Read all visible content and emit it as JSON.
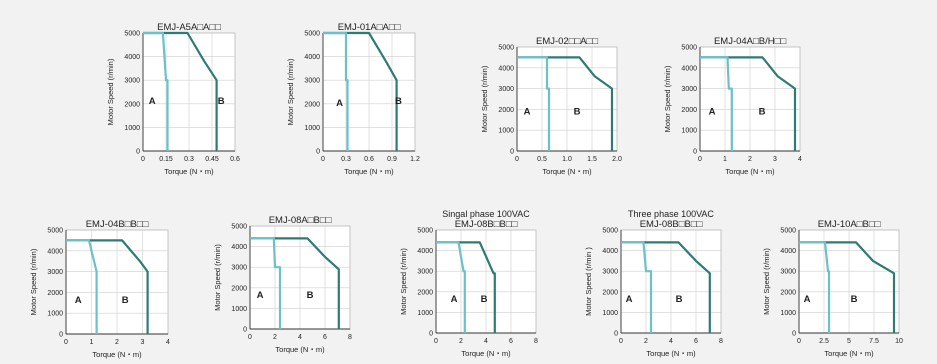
{
  "chart_data": [
    {
      "type": "line",
      "title": "EMJ-A5A□A□□",
      "xlabel": "Torque (N・m)",
      "ylabel": "Motor  Speed (r/min)",
      "xlim": [
        0,
        0.6
      ],
      "ylim": [
        0,
        5000
      ],
      "xticks": [
        0,
        0.15,
        0.3,
        0.45,
        0.6
      ],
      "xtick_labels": [
        "0",
        "0.15",
        "0.3",
        "0.45",
        "0.6"
      ],
      "yticks": [
        0,
        1000,
        2000,
        3000,
        4000,
        5000
      ],
      "series": [
        {
          "name": "A",
          "color": "#6cc0c8",
          "points": [
            [
              0,
              5000
            ],
            [
              0.13,
              5000
            ],
            [
              0.15,
              3000
            ],
            [
              0.16,
              3000
            ],
            [
              0.16,
              0
            ]
          ]
        },
        {
          "name": "B",
          "color": "#2e7b76",
          "points": [
            [
              0,
              5000
            ],
            [
              0.29,
              5000
            ],
            [
              0.4,
              3800
            ],
            [
              0.48,
              3000
            ],
            [
              0.48,
              0
            ]
          ]
        }
      ]
    },
    {
      "type": "line",
      "title": "EMJ-01A□A□□",
      "xlabel": "Torque (N・m)",
      "ylabel": "Motor  Speed (r/min)",
      "xlim": [
        0,
        1.2
      ],
      "ylim": [
        0,
        5000
      ],
      "xticks": [
        0,
        0.3,
        0.6,
        0.9,
        1.2
      ],
      "xtick_labels": [
        "0",
        "0.3",
        "0.6",
        "0.9",
        "1.2"
      ],
      "yticks": [
        0,
        1000,
        2000,
        3000,
        4000,
        5000
      ],
      "series": [
        {
          "name": "A",
          "color": "#6cc0c8",
          "points": [
            [
              0,
              5000
            ],
            [
              0.3,
              5000
            ],
            [
              0.3,
              3000
            ],
            [
              0.32,
              3000
            ],
            [
              0.32,
              0
            ]
          ]
        },
        {
          "name": "B",
          "color": "#2e7b76",
          "points": [
            [
              0,
              5000
            ],
            [
              0.6,
              5000
            ],
            [
              0.82,
              3800
            ],
            [
              0.96,
              3000
            ],
            [
              0.96,
              0
            ]
          ]
        }
      ]
    },
    {
      "type": "line",
      "title": "EMJ-02□□A□□",
      "xlabel": "Torque (N・m)",
      "ylabel": "Motor  Speed (r/min)",
      "xlim": [
        0,
        2.0
      ],
      "ylim": [
        0,
        5000
      ],
      "xticks": [
        0,
        0.5,
        1.0,
        1.5,
        2.0
      ],
      "xtick_labels": [
        "0",
        "0.5",
        "1.0",
        "1.5",
        "2.0"
      ],
      "yticks": [
        0,
        1000,
        2000,
        3000,
        4000,
        5000
      ],
      "series": [
        {
          "name": "A",
          "color": "#6cc0c8",
          "points": [
            [
              0,
              4500
            ],
            [
              0.6,
              4500
            ],
            [
              0.6,
              3000
            ],
            [
              0.64,
              3000
            ],
            [
              0.64,
              0
            ]
          ]
        },
        {
          "name": "B",
          "color": "#2e7b76",
          "points": [
            [
              0,
              4500
            ],
            [
              1.25,
              4500
            ],
            [
              1.55,
              3600
            ],
            [
              1.9,
              3000
            ],
            [
              1.9,
              0
            ]
          ]
        }
      ]
    },
    {
      "type": "line",
      "title": "EMJ-04A□B/H□□",
      "xlabel": "Torque (N・m)",
      "ylabel": "Motor  Speed (r/min)",
      "xlim": [
        0,
        4
      ],
      "ylim": [
        0,
        5000
      ],
      "xticks": [
        0,
        1,
        2,
        3,
        4
      ],
      "xtick_labels": [
        "0",
        "1",
        "2",
        "3",
        "4"
      ],
      "yticks": [
        0,
        1000,
        2000,
        3000,
        4000,
        5000
      ],
      "series": [
        {
          "name": "A",
          "color": "#6cc0c8",
          "points": [
            [
              0,
              4500
            ],
            [
              1.1,
              4500
            ],
            [
              1.15,
              3000
            ],
            [
              1.27,
              3000
            ],
            [
              1.27,
              0
            ]
          ]
        },
        {
          "name": "B",
          "color": "#2e7b76",
          "points": [
            [
              0,
              4500
            ],
            [
              2.5,
              4500
            ],
            [
              3.1,
              3600
            ],
            [
              3.8,
              3000
            ],
            [
              3.8,
              0
            ]
          ]
        }
      ]
    },
    {
      "type": "line",
      "title": "EMJ-04B□B□□",
      "xlabel": "Torque (N・m)",
      "ylabel": "Motor  Speed (r/min)",
      "xlim": [
        0,
        4
      ],
      "ylim": [
        0,
        5000
      ],
      "xticks": [
        0,
        1,
        2,
        3,
        4
      ],
      "xtick_labels": [
        "0",
        "1",
        "2",
        "3",
        "4"
      ],
      "yticks": [
        0,
        1000,
        2000,
        3000,
        4000,
        5000
      ],
      "series": [
        {
          "name": "A",
          "color": "#6cc0c8",
          "points": [
            [
              0,
              4500
            ],
            [
              0.9,
              4500
            ],
            [
              1.2,
              3000
            ],
            [
              1.2,
              0
            ]
          ]
        },
        {
          "name": "B",
          "color": "#2e7b76",
          "points": [
            [
              0,
              4500
            ],
            [
              2.2,
              4500
            ],
            [
              2.9,
              3500
            ],
            [
              3.2,
              3000
            ],
            [
              3.2,
              0
            ]
          ]
        }
      ]
    },
    {
      "type": "line",
      "title": "EMJ-08A□B□□",
      "xlabel": "Torque (N・m)",
      "ylabel": "Motor  Speed (r/min)",
      "xlim": [
        0,
        8
      ],
      "ylim": [
        0,
        5000
      ],
      "xticks": [
        0,
        2,
        4,
        6,
        8
      ],
      "xtick_labels": [
        "0",
        "2",
        "4",
        "6",
        "8"
      ],
      "yticks": [
        0,
        1000,
        2000,
        3000,
        4000,
        5000
      ],
      "series": [
        {
          "name": "A",
          "color": "#6cc0c8",
          "points": [
            [
              0,
              4400
            ],
            [
              1.9,
              4400
            ],
            [
              2.0,
              3000
            ],
            [
              2.4,
              3000
            ],
            [
              2.4,
              0
            ]
          ]
        },
        {
          "name": "B",
          "color": "#2e7b76",
          "points": [
            [
              0,
              4400
            ],
            [
              4.6,
              4400
            ],
            [
              6.0,
              3500
            ],
            [
              7.1,
              2900
            ],
            [
              7.1,
              0
            ]
          ]
        }
      ]
    },
    {
      "type": "line",
      "title": "EMJ-08B□B□□",
      "subtitle": "Singal phase 100VAC",
      "xlabel": "Torque (N・m)",
      "ylabel": "Motor  Speed (r/min)",
      "xlim": [
        0,
        8
      ],
      "ylim": [
        0,
        5000
      ],
      "xticks": [
        0,
        2,
        4,
        6,
        8
      ],
      "xtick_labels": [
        "0",
        "2",
        "4",
        "6",
        "8"
      ],
      "yticks": [
        0,
        1000,
        2000,
        3000,
        4000,
        5000
      ],
      "series": [
        {
          "name": "A",
          "color": "#6cc0c8",
          "points": [
            [
              0,
              4400
            ],
            [
              1.8,
              4400
            ],
            [
              2.2,
              3000
            ],
            [
              2.3,
              3000
            ],
            [
              2.3,
              0
            ]
          ]
        },
        {
          "name": "B",
          "color": "#2e7b76",
          "points": [
            [
              0,
              4400
            ],
            [
              3.5,
              4400
            ],
            [
              4.6,
              2900
            ],
            [
              4.7,
              2900
            ],
            [
              4.7,
              0
            ]
          ]
        }
      ]
    },
    {
      "type": "line",
      "title": "EMJ-08B□B□□",
      "subtitle": "Three phase 100VAC",
      "xlabel": "Torque (N・m)",
      "ylabel": "Motor  Speed (r/min )",
      "xlim": [
        0,
        8
      ],
      "ylim": [
        0,
        5000
      ],
      "xticks": [
        0,
        2,
        4,
        6,
        8
      ],
      "xtick_labels": [
        "0",
        "2",
        "4",
        "6",
        "8"
      ],
      "yticks": [
        0,
        1000,
        2000,
        3000,
        4000,
        5000
      ],
      "series": [
        {
          "name": "A",
          "color": "#6cc0c8",
          "points": [
            [
              0,
              4400
            ],
            [
              1.8,
              4400
            ],
            [
              2.0,
              3000
            ],
            [
              2.4,
              3000
            ],
            [
              2.4,
              0
            ]
          ]
        },
        {
          "name": "B",
          "color": "#2e7b76",
          "points": [
            [
              0,
              4400
            ],
            [
              4.6,
              4400
            ],
            [
              6.0,
              3500
            ],
            [
              7.1,
              2900
            ],
            [
              7.1,
              0
            ]
          ]
        }
      ]
    },
    {
      "type": "line",
      "title": "EMJ-10A□B□□",
      "xlabel": "Torque (N・m)",
      "ylabel": "Motor  Speed (r/min)",
      "xlim": [
        0,
        10
      ],
      "ylim": [
        0,
        5000
      ],
      "xticks": [
        0,
        2.5,
        5,
        7.5,
        10
      ],
      "xtick_labels": [
        "0",
        "2.5",
        "5",
        "7.5",
        "10"
      ],
      "yticks": [
        0,
        1000,
        2000,
        3000,
        4000,
        5000
      ],
      "series": [
        {
          "name": "A",
          "color": "#6cc0c8",
          "points": [
            [
              0,
              4400
            ],
            [
              2.6,
              4400
            ],
            [
              2.9,
              3000
            ],
            [
              3.0,
              3000
            ],
            [
              3.0,
              0
            ]
          ]
        },
        {
          "name": "B",
          "color": "#2e7b76",
          "points": [
            [
              0,
              4400
            ],
            [
              5.7,
              4400
            ],
            [
              7.4,
              3500
            ],
            [
              9.5,
              2900
            ],
            [
              9.5,
              0
            ]
          ]
        }
      ]
    }
  ]
}
